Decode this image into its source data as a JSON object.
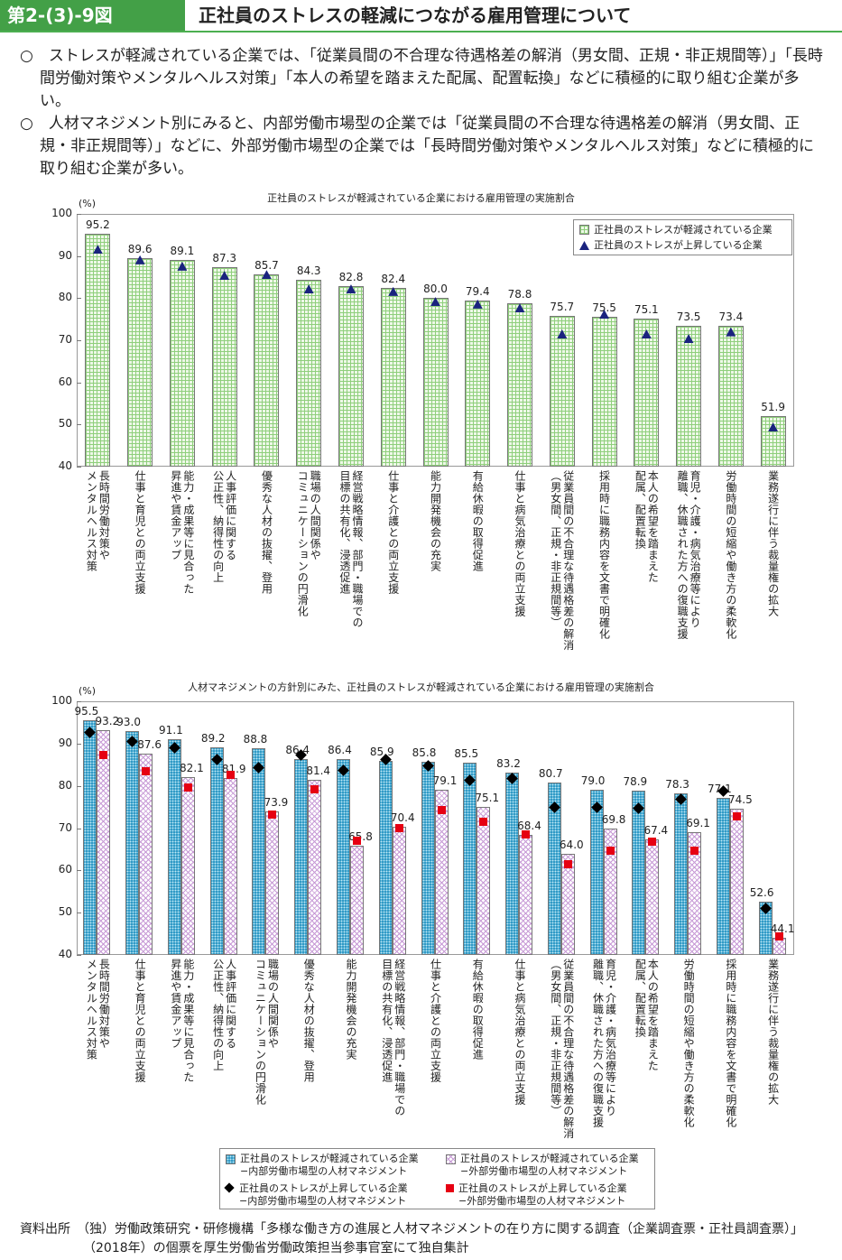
{
  "header": {
    "fig_no": "第2-(3)-9図",
    "title": "正社員のストレスの軽減につながる雇用管理について"
  },
  "bullets": [
    "○　ストレスが軽減されている企業では、「従業員間の不合理な待遇格差の解消（男女間、正規・非正規間等）」「長時間労働対策やメンタルヘルス対策」「本人の希望を踏まえた配属、配置転換」などに積極的に取り組む企業が多い。",
    "○　人材マネジメント別にみると、内部労働市場型の企業では「従業員間の不合理な待遇格差の解消（男女間、正規・非正規間等）」などに、外部労働市場型の企業では「長時間労働対策やメンタルヘルス対策」などに積極的に取り組む企業が多い。"
  ],
  "chart_data": [
    {
      "type": "bar",
      "title": "正社員のストレスが軽減されている企業における雇用管理の実施割合",
      "ylabel": "(%)",
      "ylim": [
        40,
        100
      ],
      "yticks": [
        "40",
        "50",
        "60",
        "70",
        "80",
        "90",
        "100"
      ],
      "categories": [
        "長時間労働対策や\nメンタルヘルス対策",
        "仕事と育児との両立支援",
        "能力・成果等に見合った\n昇進や賃金アップ",
        "人事評価に関する\n公正性、納得性の向上",
        "優秀な人材の抜擢、登用",
        "職場の人間関係や\nコミュニケーションの円滑化",
        "経営戦略情報、部門・職場での\n目標の共有化、浸透促進",
        "仕事と介護との両立支援",
        "能力開発機会の充実",
        "有給休暇の取得促進",
        "仕事と病気治療との両立支援",
        "従業員間の不合理な待遇格差の解消\n（男女間、正規・非正規間等）",
        "採用時に職務内容を文書で明確化",
        "本人の希望を踏まえた\n配属、配置転換",
        "育児・介護・病気治療等により\n離職、休職された方への復職支援",
        "労働時間の短縮や働き方の柔軟化",
        "業務遂行に伴う裁量権の拡大"
      ],
      "series": [
        {
          "name": "正社員のストレスが軽減されている企業",
          "kind": "bar",
          "values": [
            95.2,
            89.6,
            89.1,
            87.3,
            85.7,
            84.3,
            82.8,
            82.4,
            80.0,
            79.4,
            78.8,
            75.7,
            75.5,
            75.1,
            73.5,
            73.4,
            51.9
          ],
          "labels": [
            "95.2",
            "89.6",
            "89.1",
            "87.3",
            "85.7",
            "84.3",
            "82.8",
            "82.4",
            "80.0",
            "79.4",
            "78.8",
            "75.7",
            "75.5",
            "75.1",
            "73.5",
            "73.4",
            "51.9"
          ]
        },
        {
          "name": "正社員のストレスが上昇している企業",
          "kind": "triangle",
          "values": [
            91.6,
            89.1,
            87.6,
            85.4,
            85.6,
            82.2,
            82.2,
            81.6,
            79.2,
            78.6,
            77.7,
            71.5,
            76.2,
            71.5,
            70.4,
            72.0,
            49.4
          ]
        }
      ],
      "legend": "top-right"
    },
    {
      "type": "bar",
      "title": "人材マネジメントの方針別にみた、正社員のストレスが軽減されている企業における雇用管理の実施割合",
      "ylabel": "(%)",
      "ylim": [
        40,
        100
      ],
      "yticks": [
        "40",
        "50",
        "60",
        "70",
        "80",
        "90",
        "100"
      ],
      "categories": [
        "長時間労働対策や\nメンタルヘルス対策",
        "仕事と育児との両立支援",
        "能力・成果等に見合った\n昇進や賃金アップ",
        "人事評価に関する\n公正性、納得性の向上",
        "職場の人間関係や\nコミュニケーションの円滑化",
        "優秀な人材の抜擢、登用",
        "能力開発機会の充実",
        "経営戦略情報、部門・職場での\n目標の共有化、浸透促進",
        "仕事と介護との両立支援",
        "有給休暇の取得促進",
        "仕事と病気治療との両立支援",
        "従業員間の不合理な待遇格差の解消\n（男女間、正規・非正規間等）",
        "育児・介護・病気治療等により\n離職、休職された方への復職支援",
        "本人の希望を踏まえた\n配属、配置転換",
        "労働時間の短縮や働き方の柔軟化",
        "採用時に職務内容を文書で明確化",
        "業務遂行に伴う裁量権の拡大"
      ],
      "series": [
        {
          "name": "正社員のストレスが軽減されている企業\n−内部労働市場型の人材マネジメント",
          "kind": "bar-blue",
          "values": [
            95.5,
            93.0,
            91.1,
            89.2,
            88.8,
            86.4,
            86.4,
            85.9,
            85.8,
            85.5,
            83.2,
            80.7,
            79.0,
            78.9,
            78.3,
            77.1,
            52.6
          ],
          "labels": [
            "95.5",
            "93.0",
            "91.1",
            "89.2",
            "88.8",
            "86.4",
            "86.4",
            "85.9",
            "85.8",
            "85.5",
            "83.2",
            "80.7",
            "79.0",
            "78.9",
            "78.3",
            "77.1",
            "52.6"
          ]
        },
        {
          "name": "正社員のストレスが軽減されている企業\n−外部労働市場型の人材マネジメント",
          "kind": "bar-pink",
          "values": [
            93.2,
            87.6,
            82.1,
            81.9,
            73.9,
            81.4,
            65.8,
            70.4,
            79.1,
            75.1,
            68.4,
            64.0,
            69.8,
            67.4,
            69.1,
            74.5,
            44.1
          ],
          "labels": [
            "93.2",
            "87.6",
            "82.1",
            "81.9",
            "73.9",
            "81.4",
            "65.8",
            "70.4",
            "79.1",
            "75.1",
            "68.4",
            "64.0",
            "69.8",
            "67.4",
            "69.1",
            "74.5",
            "44.1"
          ]
        },
        {
          "name": "正社員のストレスが上昇している企業\n−内部労働市場型の人材マネジメント",
          "kind": "diamond",
          "values": [
            92.6,
            90.6,
            88.9,
            86.2,
            84.2,
            87.4,
            83.6,
            86.2,
            84.7,
            81.4,
            81.7,
            75.0,
            75.0,
            74.6,
            76.8,
            78.7,
            51.1
          ]
        },
        {
          "name": "正社員のストレスが上昇している企業\n−外部労働市場型の人材マネジメント",
          "kind": "square",
          "values": [
            87.4,
            83.4,
            79.7,
            82.5,
            73.3,
            79.1,
            67.1,
            70.1,
            74.2,
            71.4,
            68.6,
            61.4,
            64.6,
            66.7,
            64.6,
            72.7,
            44.3
          ]
        }
      ],
      "legend": "bottom"
    }
  ],
  "source": "資料出所　（独）労働政策研究・研修機構「多様な働き方の進展と人材マネジメントの在り方に関する調査（企業調査票・正社員調査票）」（2018年）の個票を厚生労働省労働政策担当参事官室にて独自集計"
}
